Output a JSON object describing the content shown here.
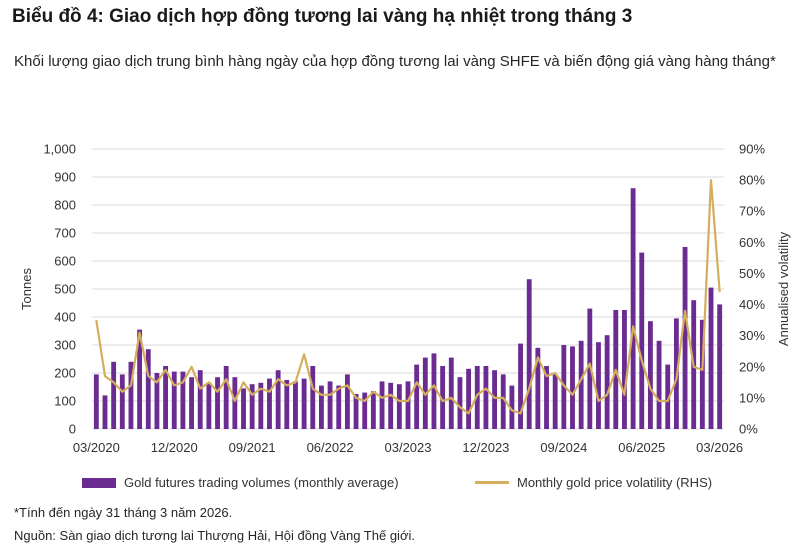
{
  "title": "Biểu đồ 4: Giao dịch hợp đồng tương lai vàng hạ nhiệt trong tháng 3",
  "subtitle": "Khối lượng giao dịch trung bình hàng ngày của hợp đồng tương lai vàng SHFE và biến động giá vàng hàng tháng*",
  "footnote": "*Tính đến ngày 31 tháng 3 năm 2026.",
  "source": "Nguồn: Sàn giao dịch tương lai Thượng Hải, Hội đồng Vàng Thế giới.",
  "colors": {
    "bar": "#6a2c91",
    "line": "#d4ae5e",
    "grid": "#d9d9d9"
  },
  "chart_data": {
    "type": "bar",
    "xlabel": "",
    "ylabel": "Tonnes",
    "y2label": "Annualised volatility",
    "ylim": [
      0,
      1000
    ],
    "y2lim": [
      0,
      0.9
    ],
    "yticks": [
      "0",
      "100",
      "200",
      "300",
      "400",
      "500",
      "600",
      "700",
      "800",
      "900",
      "1,000"
    ],
    "y2ticks": [
      "0%",
      "10%",
      "20%",
      "30%",
      "40%",
      "50%",
      "60%",
      "70%",
      "80%",
      "90%"
    ],
    "xtick_labels": [
      "03/2020",
      "12/2020",
      "09/2021",
      "06/2022",
      "03/2023",
      "12/2023",
      "09/2024",
      "06/2025",
      "03/2026"
    ],
    "grid": true,
    "legend_position": "bottom",
    "categories": [
      "03/2020",
      "04/2020",
      "05/2020",
      "06/2020",
      "07/2020",
      "08/2020",
      "09/2020",
      "10/2020",
      "11/2020",
      "12/2020",
      "01/2021",
      "02/2021",
      "03/2021",
      "04/2021",
      "05/2021",
      "06/2021",
      "07/2021",
      "08/2021",
      "09/2021",
      "10/2021",
      "11/2021",
      "12/2021",
      "01/2022",
      "02/2022",
      "03/2022",
      "04/2022",
      "05/2022",
      "06/2022",
      "07/2022",
      "08/2022",
      "09/2022",
      "10/2022",
      "11/2022",
      "12/2022",
      "01/2023",
      "02/2023",
      "03/2023",
      "04/2023",
      "05/2023",
      "06/2023",
      "07/2023",
      "08/2023",
      "09/2023",
      "10/2023",
      "11/2023",
      "12/2023",
      "01/2024",
      "02/2024",
      "03/2024",
      "04/2024",
      "05/2024",
      "06/2024",
      "07/2024",
      "08/2024",
      "09/2024",
      "10/2024",
      "11/2024",
      "12/2024",
      "01/2025",
      "02/2025",
      "03/2025",
      "04/2025",
      "05/2025",
      "06/2025",
      "07/2025",
      "08/2025",
      "09/2025",
      "10/2025",
      "11/2025",
      "12/2025",
      "01/2026",
      "02/2026",
      "03/2026"
    ],
    "series": [
      {
        "name": "Gold futures trading volumes (monthly average)",
        "type": "bar",
        "axis": "left",
        "values": [
          195,
          120,
          240,
          195,
          240,
          355,
          285,
          200,
          225,
          205,
          205,
          185,
          210,
          165,
          185,
          225,
          185,
          145,
          160,
          165,
          180,
          210,
          175,
          170,
          180,
          225,
          155,
          170,
          155,
          195,
          125,
          130,
          135,
          170,
          165,
          160,
          170,
          230,
          255,
          270,
          225,
          255,
          185,
          215,
          225,
          225,
          210,
          195,
          155,
          305,
          535,
          290,
          225,
          195,
          300,
          295,
          315,
          430,
          310,
          335,
          425,
          425,
          860,
          630,
          385,
          315,
          230,
          395,
          650,
          460,
          390,
          505,
          445
        ]
      },
      {
        "name": "Monthly gold price volatility (RHS)",
        "type": "line",
        "axis": "right",
        "values": [
          0.35,
          0.17,
          0.15,
          0.12,
          0.14,
          0.31,
          0.17,
          0.15,
          0.19,
          0.14,
          0.15,
          0.2,
          0.13,
          0.15,
          0.12,
          0.16,
          0.09,
          0.15,
          0.11,
          0.13,
          0.12,
          0.16,
          0.14,
          0.15,
          0.24,
          0.13,
          0.11,
          0.11,
          0.13,
          0.14,
          0.1,
          0.09,
          0.12,
          0.1,
          0.11,
          0.09,
          0.09,
          0.15,
          0.11,
          0.14,
          0.09,
          0.1,
          0.07,
          0.05,
          0.11,
          0.13,
          0.1,
          0.1,
          0.06,
          0.05,
          0.13,
          0.23,
          0.17,
          0.18,
          0.14,
          0.11,
          0.16,
          0.21,
          0.09,
          0.11,
          0.19,
          0.11,
          0.33,
          0.22,
          0.13,
          0.09,
          0.09,
          0.16,
          0.38,
          0.2,
          0.19,
          0.8,
          0.44
        ]
      }
    ]
  }
}
